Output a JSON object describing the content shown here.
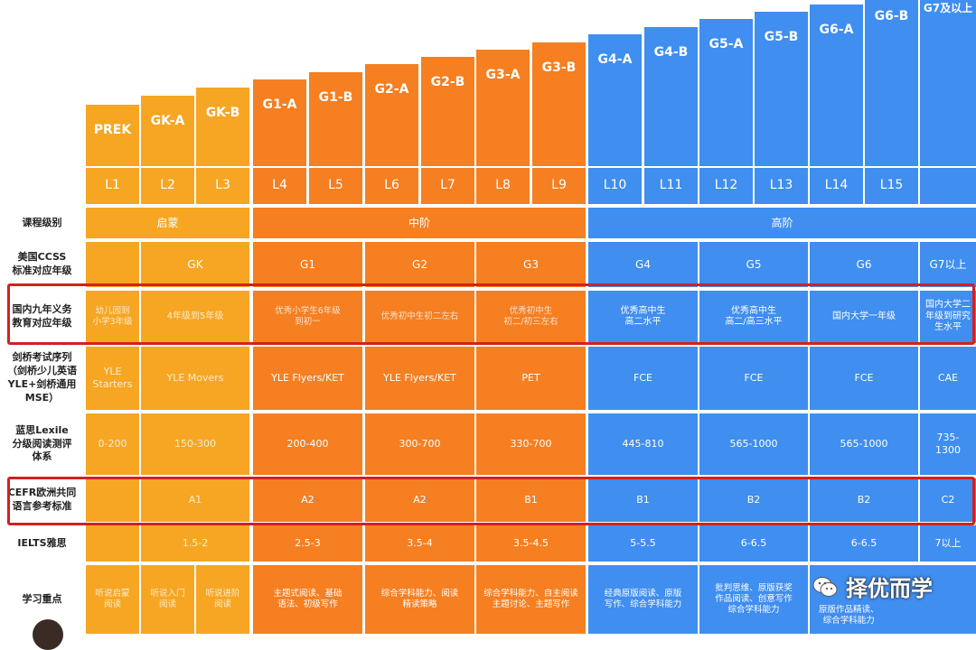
{
  "grades": [
    "PREK",
    "GK-A",
    "GK-B",
    "G1-A",
    "G1-B",
    "G2-A",
    "G2-B",
    "G3-A",
    "G3-B",
    "G4-A",
    "G4-B",
    "G5-A",
    "G5-B",
    "G6-A",
    "G6-B",
    "G7及以上"
  ],
  "levels": [
    "L1",
    "L2",
    "L3",
    "L4",
    "L5",
    "L6",
    "L7",
    "L8",
    "L9",
    "L10",
    "L11",
    "L12",
    "L13",
    "L14",
    "L15",
    ""
  ],
  "row_labels": {
    "course": "课程级别",
    "ccss": "美国CCSS\n标准对应年级",
    "china": "国内九年义务\n教育对应年级",
    "cambridge": "剑桥考试序列\n（剑桥少儿英语\nYLE+剑桥通用\nMSE）",
    "lexile": "蓝思Lexile\n分级阅读测评\n体系",
    "cefr": "CEFR欧洲共同\n语言参考标准",
    "ielts": "IELTS雅思",
    "focus": "学习重点"
  },
  "course_levels": [
    "启蒙",
    "中阶",
    "高阶"
  ],
  "ccss": [
    "GK",
    "G1",
    "G2",
    "G3",
    "G4",
    "G5",
    "G6",
    "G7以上"
  ],
  "china": [
    "幼儿园到\n小学3年级",
    "4年级到5年级",
    "优秀小学生6年级\n到初一",
    "优秀初中生初二左右",
    "优秀初中生\n初二/初三左右",
    "优秀高中生\n高二水平",
    "优秀高中生\n高二/高三水平",
    "国内大学一年级",
    "国内大学二\n年级到研究\n生水平"
  ],
  "cambridge": [
    "YLE\nStarters",
    "YLE Movers",
    "YLE Flyers/KET",
    "YLE Flyers/KET",
    "PET",
    "FCE",
    "FCE",
    "FCE",
    "CAE"
  ],
  "lexile": [
    "0-200",
    "150-300",
    "200-400",
    "300-700",
    "330-700",
    "445-810",
    "565-1000",
    "565-1000",
    "735-\n1300"
  ],
  "cefr": [
    "A1",
    "A2",
    "A2",
    "B1",
    "B1",
    "B2",
    "B2",
    "C2"
  ],
  "ielts": [
    "1.5-2",
    "2.5-3",
    "3.5-4",
    "3.5-4.5",
    "5-5.5",
    "6-6.5",
    "6-6.5",
    "7以上"
  ],
  "focus": [
    "听说启蒙\n阅读",
    "听说入门\n阅读",
    "听说进阶\n阅读",
    "主题式阅读、基础\n语法、初级写作",
    "综合学科能力、阅读\n精读策略",
    "综合学科能力、自主阅读\n主题讨论、主题写作",
    "经典原版阅读、原版\n写作、综合学科能力",
    "批判思维、原版获奖\n作品阅读、创意写作\n综合学科能力",
    "原版作品精读、\n综合学科能力"
  ],
  "watermark": "择优而学",
  "colors": {
    "yellow": "#f6a623",
    "orange": "#f57f21",
    "blue": "#3f8ef0",
    "red_box": "#d42020"
  }
}
